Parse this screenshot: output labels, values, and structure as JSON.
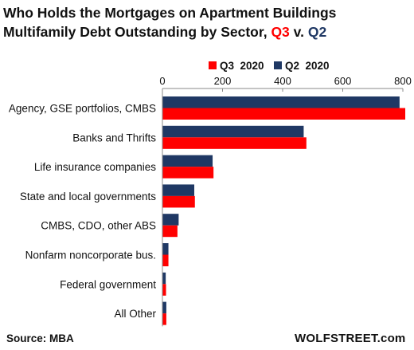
{
  "header": {
    "title": "Who Holds the Mortgages on Apartment Buildings",
    "subtitle_prefix": "Multifamily Debt Outstanding by Sector, ",
    "subtitle_q3": "Q3",
    "subtitle_mid": " v. ",
    "subtitle_q2": "Q2"
  },
  "footer": {
    "source": "Source: MBA",
    "brand": "WOLFSTREET.com"
  },
  "colors": {
    "q3": "#ff0000",
    "q2": "#1f3864"
  },
  "chart_data": {
    "type": "bar",
    "orientation": "horizontal",
    "categories": [
      "Agency, GSE portfolios, CMBS",
      "Banks and Thrifts",
      "Life insurance companies",
      "State and local governments",
      "CMBS, CDO, other ABS",
      "Nonfarm noncorporate bus.",
      "Federal government",
      "All Other"
    ],
    "series": [
      {
        "name": "Q3  2020",
        "color": "#ff0000",
        "values": [
          808,
          479,
          170,
          108,
          50,
          20,
          12,
          13
        ]
      },
      {
        "name": "Q2  2020",
        "color": "#1f3864",
        "values": [
          789,
          470,
          167,
          106,
          54,
          20,
          11,
          13
        ]
      }
    ],
    "xlim": [
      0,
      800
    ],
    "xticks": [
      0,
      200,
      400,
      600,
      800
    ],
    "legend": "top-center",
    "grid": false
  }
}
